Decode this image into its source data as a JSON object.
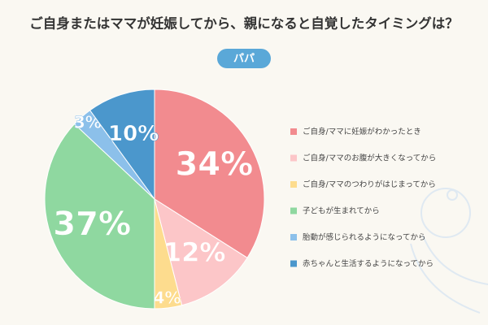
{
  "chart_data": {
    "type": "pie",
    "title": "ご自身またはママが妊娠してから、親になると自覚したタイミングは？",
    "subtitle": "パパ",
    "categories": [
      "ご自身/ママに妊娠がわかったとき",
      "ご自身/ママのお腹が大きくなってから",
      "ご自身/ママのつわりがはじまってから",
      "子どもが生まれてから",
      "胎動が感じられるようになってから",
      "赤ちゃんと生活するようになってから"
    ],
    "values": [
      34,
      12,
      4,
      37,
      3,
      10
    ],
    "value_labels": [
      "34%",
      "12%",
      "4%",
      "37%",
      "3%",
      "10%"
    ],
    "colors": [
      "#f28b8f",
      "#fcc6c8",
      "#fddc8e",
      "#8fd8a0",
      "#8cc0ea",
      "#4b97cc"
    ]
  }
}
